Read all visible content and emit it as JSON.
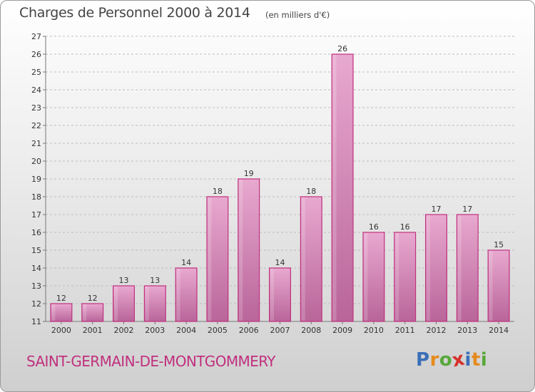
{
  "title": "Charges de Personnel 2000 à 2014",
  "subtitle": "(en milliers d'€)",
  "commune": "SAINT-GERMAIN-DE-MONTGOMMERY",
  "logo": {
    "text": "Proxiti",
    "letters": [
      "P",
      "r",
      "o",
      "x",
      "i",
      "t",
      "i"
    ],
    "colors": [
      "#3a6fb8",
      "#e68a1e",
      "#58a83a",
      "#d6312a",
      "#3a6fb8",
      "#e68a1e",
      "#58a83a"
    ]
  },
  "colors": {
    "bar_light": "#e8a9cf",
    "bar_dark": "#b9659a",
    "bar_edge": "#c0307e",
    "grid": "#bdbdbd",
    "title": "#444444",
    "commune": "#c0307e"
  },
  "chart_data": {
    "type": "bar",
    "categories": [
      "2000",
      "2001",
      "2002",
      "2003",
      "2004",
      "2005",
      "2006",
      "2007",
      "2008",
      "2009",
      "2010",
      "2011",
      "2012",
      "2013",
      "2014"
    ],
    "values": [
      12,
      12,
      13,
      13,
      14,
      18,
      19,
      14,
      18,
      26,
      16,
      16,
      17,
      17,
      15
    ],
    "ylim": [
      11,
      27
    ],
    "yticks": [
      11,
      12,
      13,
      14,
      15,
      16,
      17,
      18,
      19,
      20,
      21,
      22,
      23,
      24,
      25,
      26,
      27
    ],
    "grid": "horizontal dashed",
    "legend": "none"
  }
}
